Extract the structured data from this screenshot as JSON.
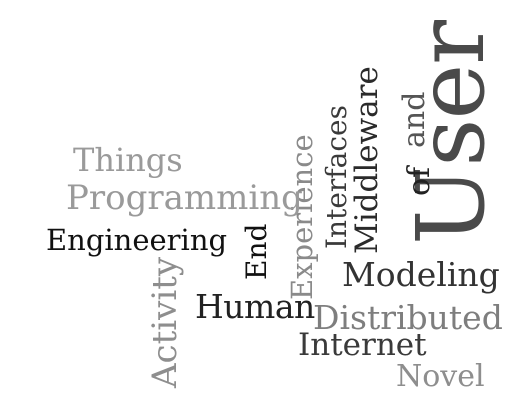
{
  "wordcloud": {
    "words": {
      "user": "User",
      "of": "of",
      "and": "and",
      "middleware": "Middleware",
      "interfaces": "Interfaces",
      "experience": "Experience",
      "end": "End",
      "activity": "Activity",
      "things": "Things",
      "programming": "Programming",
      "engineering": "Engineering",
      "modeling": "Modeling",
      "human": "Human",
      "distributed": "Distributed",
      "internet": "Internet",
      "novel": "Novel"
    },
    "colors": {
      "background": "#ffffff",
      "darkest": "#111111",
      "dark": "#333333",
      "mid": "#7e7e7e",
      "light": "#9a9a9a"
    }
  }
}
